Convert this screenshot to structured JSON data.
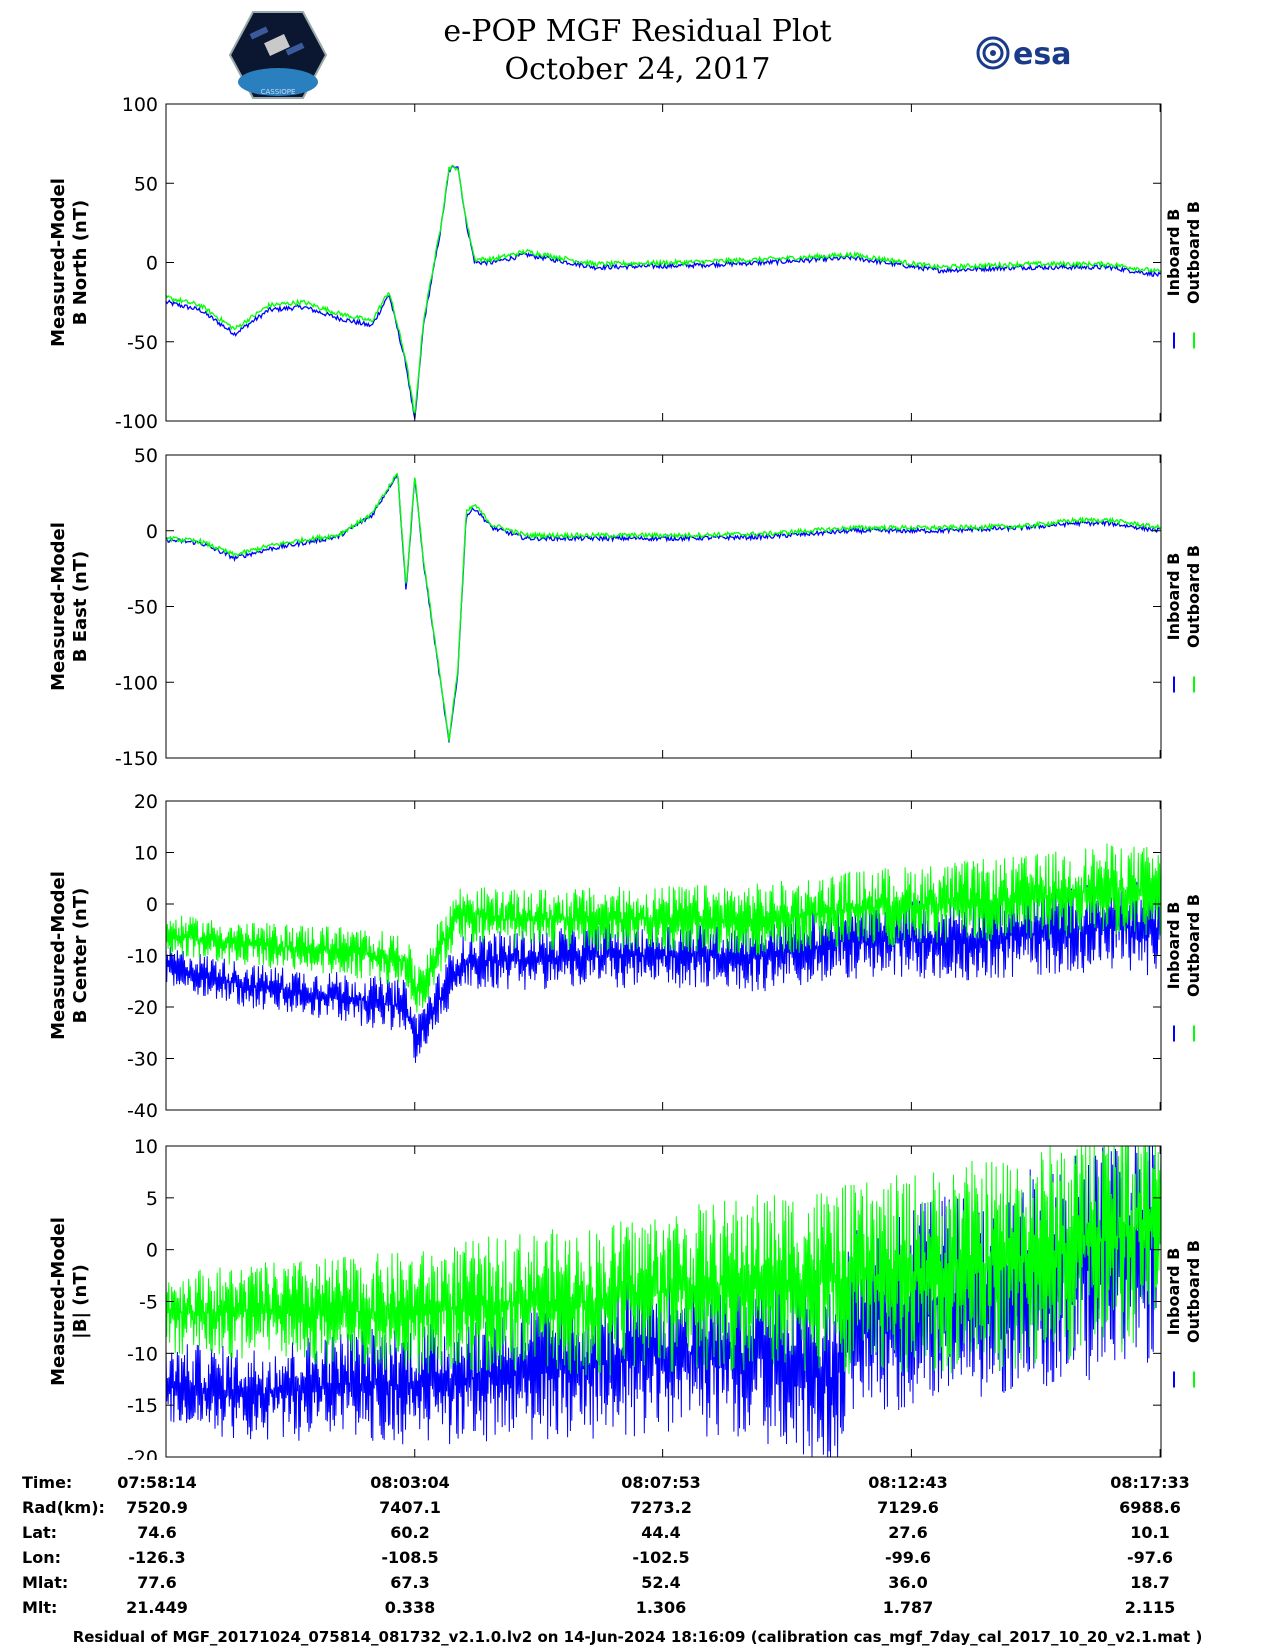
{
  "header": {
    "title_line1": "e-POP MGF Residual Plot",
    "title_line2": "October 24, 2017",
    "left_logo": "CASSIOPE",
    "right_logo": "esa"
  },
  "colors": {
    "inboard": "#0000ff",
    "outboard": "#00ff00",
    "axis": "#000000"
  },
  "legend": {
    "inboard": "Inboard B",
    "outboard": "Outboard B"
  },
  "chart_data": [
    {
      "type": "line",
      "ylabel": [
        "Measured-Model",
        "B North (nT)"
      ],
      "ylim": [
        -100,
        100
      ],
      "yticks": [
        -100,
        -50,
        0,
        50,
        100
      ],
      "xlim": [
        0,
        1160
      ],
      "xticks": [
        0,
        290,
        579,
        869,
        1159
      ],
      "series": [
        {
          "name": "Inboard B",
          "x": [
            0,
            40,
            80,
            120,
            160,
            200,
            240,
            260,
            280,
            290,
            300,
            320,
            330,
            340,
            350,
            360,
            380,
            420,
            500,
            600,
            700,
            800,
            900,
            1000,
            1100,
            1160
          ],
          "y": [
            -25,
            -30,
            -45,
            -30,
            -28,
            -35,
            -40,
            -20,
            -65,
            -100,
            -40,
            20,
            58,
            62,
            25,
            0,
            0,
            5,
            -3,
            -2,
            0,
            3,
            -5,
            -3,
            -3,
            -8
          ]
        },
        {
          "name": "Outboard B",
          "x": [
            0,
            40,
            80,
            120,
            160,
            200,
            240,
            260,
            280,
            290,
            300,
            320,
            330,
            340,
            350,
            360,
            380,
            420,
            500,
            600,
            700,
            800,
            900,
            1000,
            1100,
            1160
          ],
          "y": [
            -22,
            -27,
            -42,
            -27,
            -25,
            -32,
            -37,
            -18,
            -62,
            -97,
            -37,
            22,
            60,
            60,
            27,
            2,
            2,
            7,
            -1,
            0,
            2,
            5,
            -3,
            -1,
            -1,
            -6
          ]
        }
      ]
    },
    {
      "type": "line",
      "ylabel": [
        "Measured-Model",
        "B East (nT)"
      ],
      "ylim": [
        -150,
        50
      ],
      "yticks": [
        -150,
        -100,
        -50,
        0,
        50
      ],
      "xlim": [
        0,
        1160
      ],
      "xticks": [
        0,
        290,
        579,
        869,
        1159
      ],
      "series": [
        {
          "name": "Inboard B",
          "x": [
            0,
            40,
            80,
            120,
            160,
            200,
            240,
            270,
            280,
            290,
            300,
            320,
            330,
            340,
            350,
            360,
            380,
            420,
            500,
            600,
            700,
            800,
            900,
            1000,
            1060,
            1100,
            1160
          ],
          "y": [
            -6,
            -8,
            -18,
            -12,
            -8,
            -4,
            10,
            38,
            -40,
            35,
            -20,
            -100,
            -140,
            -95,
            10,
            15,
            2,
            -5,
            -5,
            -5,
            -4,
            0,
            0,
            2,
            5,
            5,
            0
          ]
        },
        {
          "name": "Outboard B",
          "x": [
            0,
            40,
            80,
            120,
            160,
            200,
            240,
            270,
            280,
            290,
            300,
            320,
            330,
            340,
            350,
            360,
            380,
            420,
            500,
            600,
            700,
            800,
            900,
            1000,
            1060,
            1100,
            1160
          ],
          "y": [
            -5,
            -7,
            -16,
            -10,
            -6,
            -3,
            11,
            38,
            -38,
            36,
            -18,
            -98,
            -138,
            -93,
            12,
            17,
            4,
            -3,
            -3,
            -3,
            -2,
            2,
            2,
            3,
            7,
            7,
            2
          ]
        }
      ]
    },
    {
      "type": "line",
      "ylabel": [
        "Measured-Model",
        "B Center (nT)"
      ],
      "ylim": [
        -40,
        20
      ],
      "yticks": [
        -40,
        -30,
        -20,
        -10,
        0,
        10,
        20
      ],
      "xlim": [
        0,
        1160
      ],
      "xticks": [
        0,
        290,
        579,
        869,
        1159
      ],
      "series": [
        {
          "name": "Inboard B",
          "x": [
            0,
            100,
            200,
            280,
            290,
            300,
            320,
            340,
            360,
            400,
            500,
            600,
            700,
            800,
            900,
            1000,
            1100,
            1160
          ],
          "y": [
            -12,
            -16,
            -18,
            -20,
            -26,
            -24,
            -18,
            -12,
            -11,
            -11,
            -10,
            -10,
            -10,
            -7,
            -7,
            -6,
            -4,
            -5
          ]
        },
        {
          "name": "Outboard B",
          "x": [
            0,
            100,
            200,
            280,
            290,
            300,
            320,
            340,
            360,
            400,
            500,
            600,
            700,
            800,
            900,
            1000,
            1100,
            1160
          ],
          "y": [
            -6,
            -8,
            -9,
            -11,
            -17,
            -15,
            -8,
            -2,
            -2,
            -3,
            -3,
            -3,
            -3,
            -1,
            0,
            1,
            3,
            2
          ]
        }
      ]
    },
    {
      "type": "line",
      "ylabel": [
        "Measured-Model",
        "|B| (nT)"
      ],
      "ylim": [
        -20,
        10
      ],
      "yticks": [
        -20,
        -15,
        -10,
        -5,
        0,
        5,
        10
      ],
      "xlim": [
        0,
        1160
      ],
      "xticks": [
        0,
        290,
        579,
        869,
        1159
      ],
      "series": [
        {
          "name": "Inboard B",
          "x": [
            0,
            100,
            200,
            300,
            400,
            500,
            580,
            700,
            780,
            800,
            900,
            1000,
            1100,
            1160
          ],
          "y": [
            -13,
            -14,
            -13,
            -13,
            -12,
            -11,
            -10,
            -10,
            -13,
            -7,
            -5,
            -3,
            -1,
            1
          ]
        },
        {
          "name": "Outboard B",
          "x": [
            0,
            100,
            200,
            300,
            400,
            500,
            580,
            700,
            780,
            800,
            900,
            1000,
            1100,
            1160
          ],
          "y": [
            -6,
            -6,
            -6,
            -6,
            -5,
            -5,
            -4,
            -3,
            -3,
            -3,
            -2,
            -1,
            1,
            3
          ]
        }
      ]
    }
  ],
  "table": {
    "rows": [
      {
        "label": "Time:",
        "values": [
          "07:58:14",
          "08:03:04",
          "08:07:53",
          "08:12:43",
          "08:17:33"
        ]
      },
      {
        "label": "Rad(km):",
        "values": [
          "7520.9",
          "7407.1",
          "7273.2",
          "7129.6",
          "6988.6"
        ]
      },
      {
        "label": "Lat:",
        "values": [
          "74.6",
          "60.2",
          "44.4",
          "27.6",
          "10.1"
        ]
      },
      {
        "label": "Lon:",
        "values": [
          "-126.3",
          "-108.5",
          "-102.5",
          "-99.6",
          "-97.6"
        ]
      },
      {
        "label": "Mlat:",
        "values": [
          "77.6",
          "67.3",
          "52.4",
          "36.0",
          "18.7"
        ]
      },
      {
        "label": "Mlt:",
        "values": [
          "21.449",
          "0.338",
          "1.306",
          "1.787",
          "2.115"
        ]
      }
    ]
  },
  "footer": "Residual of MGF_20171024_075814_081732_v2.1.0.lv2 on 14-Jun-2024 18:16:09 (calibration cas_mgf_7day_cal_2017_10_20_v2.1.mat )"
}
